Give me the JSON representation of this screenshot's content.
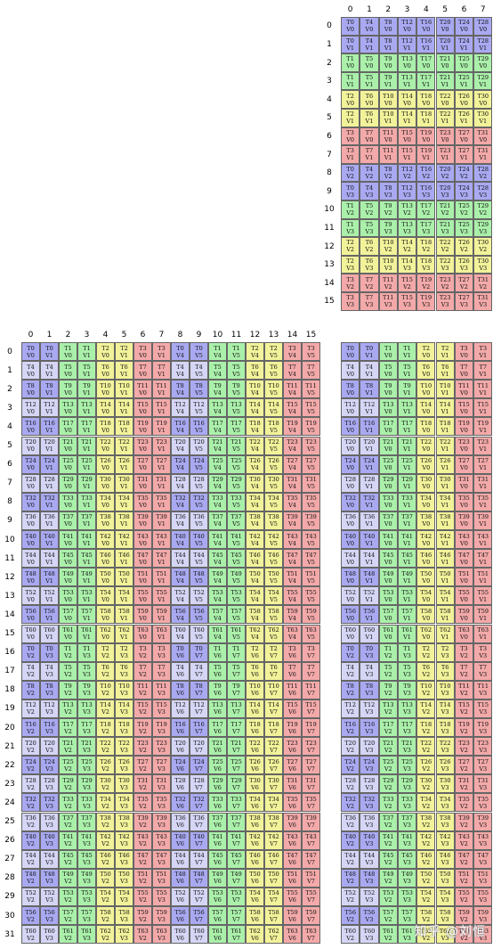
{
  "colors": {
    "blue": "#a9a9f2",
    "light_blue": "#d5d5f5",
    "green": "#aaf0aa",
    "yellow": "#f2f29a",
    "red": "#f3a9a9",
    "border": "#666666"
  },
  "panel_a": {
    "col_headers": [
      "0",
      "1",
      "2",
      "3",
      "4",
      "5",
      "6",
      "7"
    ],
    "row_headers": [
      "0",
      "1",
      "2",
      "3",
      "4",
      "5",
      "6",
      "7",
      "8",
      "9",
      "10",
      "11",
      "12",
      "13",
      "14",
      "15"
    ]
  },
  "panel_b": {
    "col_headers": [
      "0",
      "1",
      "2",
      "3",
      "4",
      "5",
      "6",
      "7",
      "8",
      "9",
      "10",
      "11",
      "12",
      "13",
      "14",
      "15"
    ],
    "row_headers": [
      "0",
      "1",
      "2",
      "3",
      "4",
      "5",
      "6",
      "7",
      "8",
      "9",
      "10",
      "11",
      "12",
      "13",
      "14",
      "15",
      "16",
      "17",
      "18",
      "19",
      "20",
      "21",
      "22",
      "23",
      "24",
      "25",
      "26",
      "27",
      "28",
      "29",
      "30",
      "31"
    ]
  },
  "panel_c": {},
  "watermark": "知乎 @刘恒"
}
